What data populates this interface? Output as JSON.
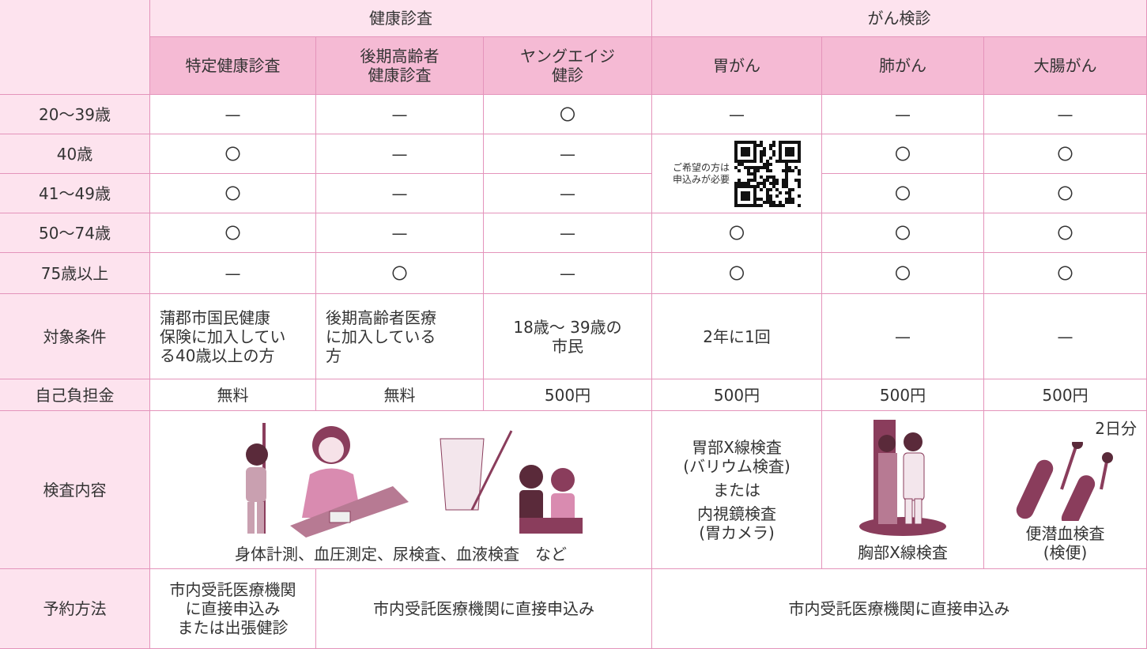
{
  "groups": [
    "健康診査",
    "がん検診"
  ],
  "columns": [
    "特定健康診査",
    "後期高齢者\n健康診査",
    "ヤングエイジ\n健診",
    "胃がん",
    "肺がん",
    "大腸がん"
  ],
  "age_rows": [
    {
      "label": "20～39歳",
      "cells": [
        "—",
        "—",
        "〇",
        "—",
        "—",
        "—"
      ]
    },
    {
      "label": "40歳",
      "cells": [
        "〇",
        "—",
        "—",
        "〇",
        "〇"
      ]
    },
    {
      "label": "41～49歳",
      "cells": [
        "〇",
        "—",
        "—",
        "〇",
        "〇"
      ]
    },
    {
      "label": "50～74歳",
      "cells": [
        "〇",
        "—",
        "—",
        "〇",
        "〇",
        "〇"
      ]
    },
    {
      "label": "75歳以上",
      "cells": [
        "—",
        "〇",
        "—",
        "〇",
        "〇",
        "〇"
      ]
    }
  ],
  "qr_note": "ご希望の方は\n申込みが必要",
  "conditions": {
    "label": "対象条件",
    "cells": [
      "蒲郡市国民健康\n保険に加入してい\nる40歳以上の方",
      "後期高齢者医療\nに加入している\n方",
      "18歳～ 39歳の\n市民",
      "2年に1回",
      "—",
      "—"
    ]
  },
  "cost": {
    "label": "自己負担金",
    "cells": [
      "無料",
      "無料",
      "500円",
      "500円",
      "500円",
      "500円"
    ]
  },
  "exam": {
    "label": "検査内容",
    "health": "身体計測、血圧測定、尿検査、血液検査　など",
    "stomach": [
      "胃部X線検査\n(バリウム検査)",
      "または",
      "内視鏡検査\n(胃カメラ)"
    ],
    "lung": "胸部X線検査",
    "colon_days": "2日分",
    "colon": "便潜血検査\n(検便)"
  },
  "reservation": {
    "label": "予約方法",
    "cells": [
      "市内受託医療機関\nに直接申込み\nまたは出張健診",
      "市内受託医療機関に直接申込み",
      "市内受託医療機関に直接申込み"
    ]
  }
}
